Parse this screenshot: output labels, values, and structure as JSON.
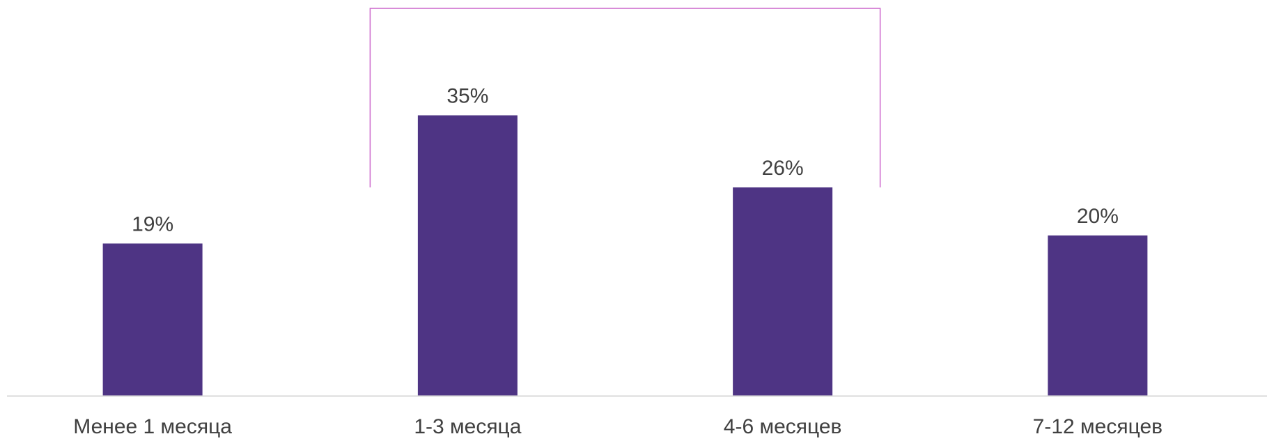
{
  "chart_data": {
    "type": "bar",
    "categories": [
      "Менее 1 месяца",
      "1-3 месяца",
      "4-6 месяцев",
      "7-12 месяцев"
    ],
    "values": [
      19,
      35,
      26,
      20
    ],
    "value_labels": [
      "19%",
      "35%",
      "26%",
      "20%"
    ],
    "ylim": [
      0,
      40
    ],
    "grid": false,
    "colors": {
      "bar": "#4e3484",
      "bracket": "#cc66cc",
      "axis": "#d9d9d9",
      "text": "#404040"
    },
    "annotations": [
      {
        "type": "bracket",
        "spans": [
          "1-3 месяца",
          "4-6 месяцев"
        ]
      }
    ]
  }
}
